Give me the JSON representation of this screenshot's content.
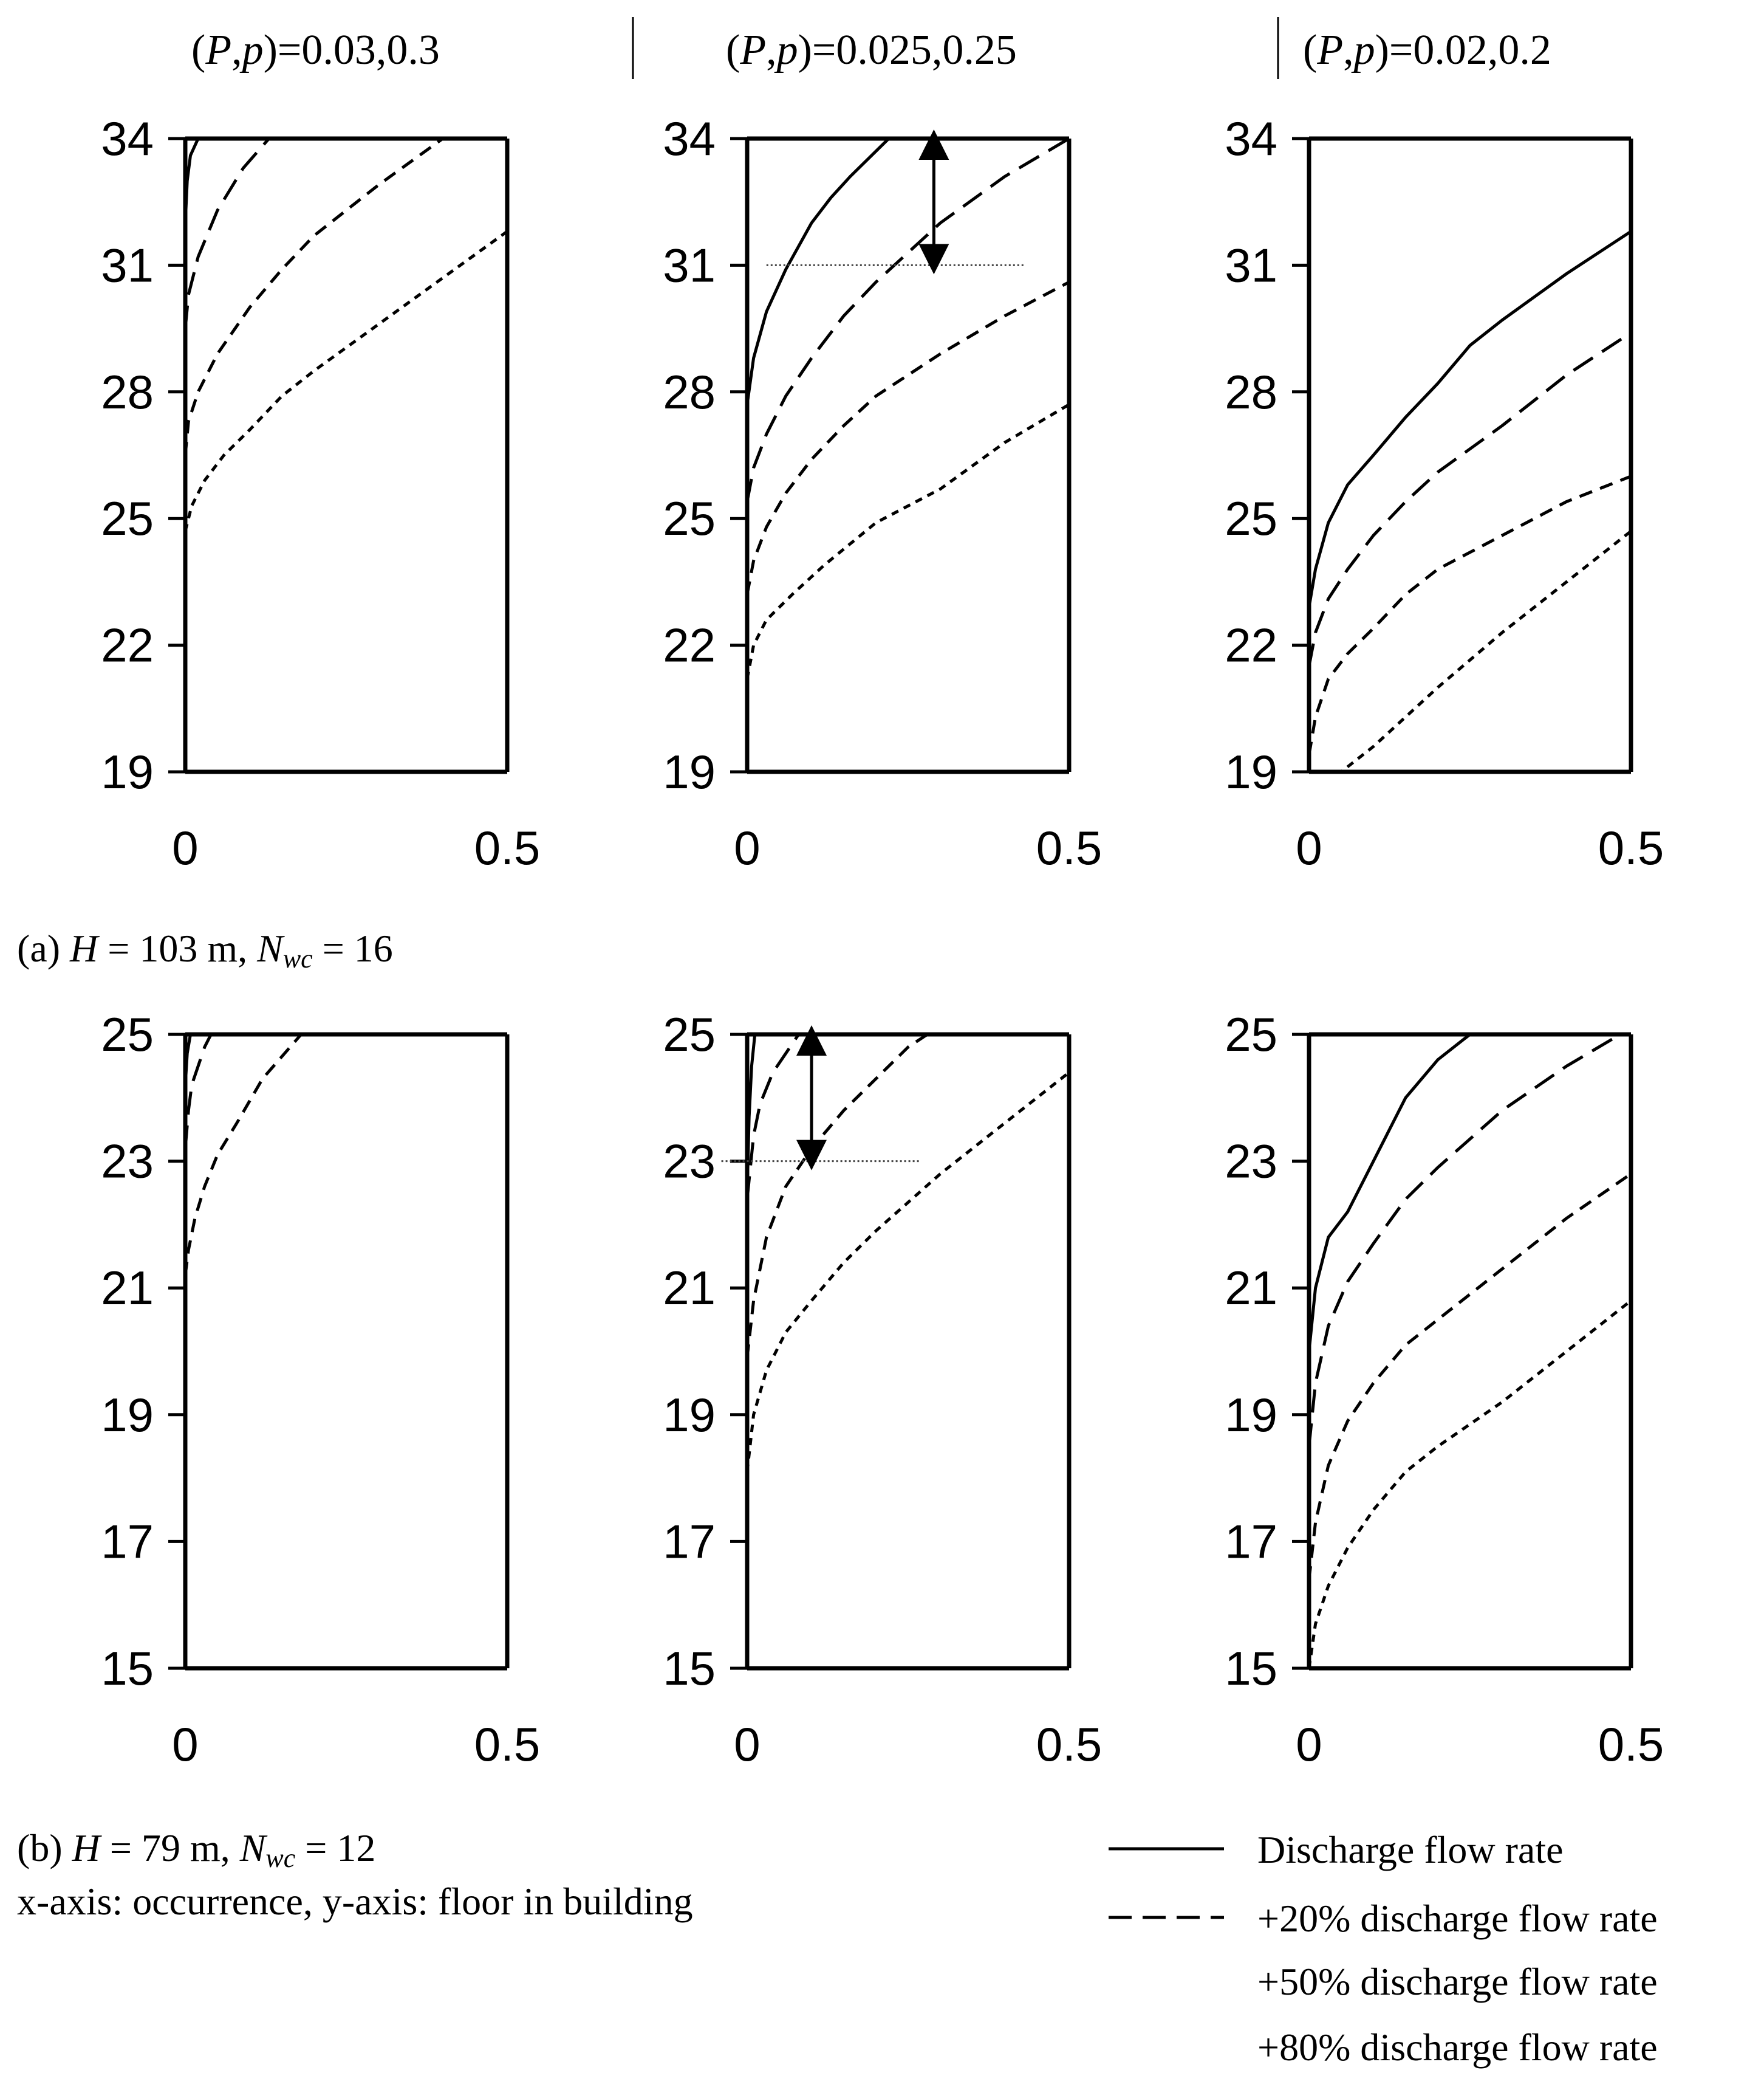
{
  "column_headers": [
    {
      "pre": "(",
      "P": "P",
      "comma": ",",
      "p": "p",
      "post": ")=0.03,0.3"
    },
    {
      "pre": "(",
      "P": "P",
      "comma": ",",
      "p": "p",
      "post": ")=0.025,0.25"
    },
    {
      "pre": "(",
      "P": "P",
      "comma": ",",
      "p": "p",
      "post": ")=0.02,0.2"
    }
  ],
  "captions": {
    "a": {
      "prefix": "(a) ",
      "H": "H",
      "h_value": " = 103 m, ",
      "N": "N",
      "sub": "wc",
      "n_value": " = 16"
    },
    "b": {
      "prefix": "(b) ",
      "H": "H",
      "h_value": " = 79 m, ",
      "N": "N",
      "sub": "wc",
      "n_value": " = 12"
    },
    "axes_note": "x-axis: occurrence, y-axis: floor in building"
  },
  "legend": [
    {
      "label": "Discharge flow rate",
      "style": "solid"
    },
    {
      "label": "+20% discharge flow rate",
      "style": "long-dash"
    },
    {
      "label": "+50% discharge flow rate",
      "style": "dash"
    },
    {
      "label": "+80% discharge flow rate",
      "style": "short-dash"
    }
  ],
  "styles": {
    "solid": "none",
    "long-dash": "38 18",
    "dash": "22 14",
    "short-dash": "12 10"
  },
  "chart_data": [
    {
      "type": "line",
      "row": "a",
      "col": 0,
      "xlim": [
        0,
        0.5
      ],
      "ylim": [
        19,
        34
      ],
      "xticks": [
        "0",
        "0.5"
      ],
      "yticks": [
        "19",
        "22",
        "25",
        "28",
        "31",
        "34"
      ],
      "series": [
        {
          "style": "solid",
          "x": [
            0,
            0.003,
            0.008,
            0.02
          ],
          "y": [
            32,
            33,
            33.6,
            34
          ]
        },
        {
          "style": "long-dash",
          "x": [
            0,
            0.005,
            0.02,
            0.05,
            0.09,
            0.13
          ],
          "y": [
            29.5,
            30.3,
            31.2,
            32.3,
            33.3,
            34
          ]
        },
        {
          "style": "dash",
          "x": [
            0,
            0.005,
            0.02,
            0.05,
            0.1,
            0.15,
            0.2,
            0.3,
            0.4
          ],
          "y": [
            26.5,
            27.3,
            28,
            28.9,
            30,
            30.9,
            31.7,
            32.9,
            34
          ]
        },
        {
          "style": "short-dash",
          "x": [
            0,
            0.01,
            0.03,
            0.06,
            0.1,
            0.15,
            0.2,
            0.3,
            0.4,
            0.5
          ],
          "y": [
            24.7,
            25.3,
            25.9,
            26.5,
            27.1,
            27.9,
            28.5,
            29.6,
            30.7,
            31.8
          ]
        }
      ]
    },
    {
      "type": "line",
      "row": "a",
      "col": 1,
      "xlim": [
        0,
        0.5
      ],
      "ylim": [
        19,
        34
      ],
      "xticks": [
        "0",
        "0.5"
      ],
      "yticks": [
        "19",
        "22",
        "25",
        "28",
        "31",
        "34"
      ],
      "series": [
        {
          "style": "solid",
          "x": [
            0,
            0.01,
            0.03,
            0.06,
            0.1,
            0.13,
            0.16,
            0.2,
            0.22
          ],
          "y": [
            27.7,
            28.8,
            29.9,
            30.9,
            32,
            32.6,
            33.1,
            33.7,
            34
          ]
        },
        {
          "style": "long-dash",
          "x": [
            0,
            0.01,
            0.03,
            0.06,
            0.1,
            0.15,
            0.2,
            0.3,
            0.4,
            0.5
          ],
          "y": [
            25.4,
            26.2,
            27,
            27.9,
            28.8,
            29.8,
            30.6,
            32,
            33.1,
            34
          ]
        },
        {
          "style": "dash",
          "x": [
            0,
            0.01,
            0.03,
            0.06,
            0.1,
            0.15,
            0.2,
            0.3,
            0.4,
            0.5
          ],
          "y": [
            23.2,
            24,
            24.8,
            25.6,
            26.4,
            27.2,
            27.9,
            28.9,
            29.8,
            30.6
          ]
        },
        {
          "style": "short-dash",
          "x": [
            0,
            0.01,
            0.03,
            0.07,
            0.12,
            0.2,
            0.3,
            0.4,
            0.5
          ],
          "y": [
            21.2,
            22,
            22.6,
            23.2,
            23.9,
            24.9,
            25.7,
            26.8,
            27.7
          ]
        }
      ],
      "annotation": {
        "arrow_x": 0.29,
        "arrow_y1": 34,
        "arrow_y2": 31,
        "ref_line_y": 31,
        "ref_line_x": [
          0.03,
          0.43
        ]
      }
    },
    {
      "type": "line",
      "row": "a",
      "col": 2,
      "xlim": [
        0,
        0.5
      ],
      "ylim": [
        19,
        34
      ],
      "xticks": [
        "0",
        "0.5"
      ],
      "yticks": [
        "19",
        "22",
        "25",
        "28",
        "31",
        "34"
      ],
      "series": [
        {
          "style": "solid",
          "x": [
            0,
            0.01,
            0.03,
            0.06,
            0.1,
            0.15,
            0.2,
            0.25,
            0.3,
            0.4,
            0.5
          ],
          "y": [
            22.9,
            23.8,
            24.9,
            25.8,
            26.5,
            27.4,
            28.2,
            29.1,
            29.7,
            30.8,
            31.8
          ]
        },
        {
          "style": "long-dash",
          "x": [
            0,
            0.01,
            0.03,
            0.06,
            0.1,
            0.15,
            0.2,
            0.3,
            0.4,
            0.5
          ],
          "y": [
            21.5,
            22.3,
            23.1,
            23.8,
            24.6,
            25.4,
            26.1,
            27.2,
            28.4,
            29.4
          ]
        },
        {
          "style": "dash",
          "x": [
            0,
            0.01,
            0.03,
            0.06,
            0.1,
            0.15,
            0.2,
            0.3,
            0.4,
            0.5
          ],
          "y": [
            19.4,
            20.3,
            21.2,
            21.8,
            22.4,
            23.2,
            23.8,
            24.6,
            25.4,
            26
          ]
        },
        {
          "style": "short-dash",
          "x": [
            0,
            0.05,
            0.1,
            0.2,
            0.3,
            0.4,
            0.5
          ],
          "y": [
            19,
            19,
            19.6,
            21,
            22.3,
            23.5,
            24.7
          ]
        }
      ]
    },
    {
      "type": "line",
      "row": "b",
      "col": 0,
      "xlim": [
        0,
        0.5
      ],
      "ylim": [
        15,
        25
      ],
      "xticks": [
        "0",
        "0.5"
      ],
      "yticks": [
        "15",
        "17",
        "19",
        "21",
        "23",
        "25"
      ],
      "series": [
        {
          "style": "solid",
          "x": [
            0,
            0.003,
            0.008
          ],
          "y": [
            24.2,
            24.7,
            25
          ]
        },
        {
          "style": "long-dash",
          "x": [
            0,
            0.005,
            0.01,
            0.02,
            0.03,
            0.04
          ],
          "y": [
            23.2,
            23.8,
            24.2,
            24.5,
            24.8,
            25
          ]
        },
        {
          "style": "dash",
          "x": [
            0,
            0.005,
            0.015,
            0.03,
            0.05,
            0.08,
            0.12,
            0.18
          ],
          "y": [
            21.2,
            21.6,
            22.1,
            22.6,
            23.1,
            23.6,
            24.3,
            25
          ]
        }
      ]
    },
    {
      "type": "line",
      "row": "b",
      "col": 1,
      "xlim": [
        0,
        0.5
      ],
      "ylim": [
        15,
        25
      ],
      "xticks": [
        "0",
        "0.5"
      ],
      "yticks": [
        "15",
        "17",
        "19",
        "21",
        "23",
        "25"
      ],
      "series": [
        {
          "style": "solid",
          "x": [
            0,
            0.003,
            0.007,
            0.012
          ],
          "y": [
            22.5,
            23.7,
            24.5,
            25
          ]
        },
        {
          "style": "long-dash",
          "x": [
            0,
            0.005,
            0.01,
            0.02,
            0.04,
            0.06,
            0.08
          ],
          "y": [
            22.4,
            22.9,
            23.4,
            23.9,
            24.4,
            24.7,
            25
          ]
        },
        {
          "style": "dash",
          "x": [
            0,
            0.01,
            0.03,
            0.06,
            0.1,
            0.15,
            0.2,
            0.25,
            0.28
          ],
          "y": [
            19.9,
            20.8,
            21.8,
            22.6,
            23.2,
            23.8,
            24.3,
            24.8,
            25
          ]
        },
        {
          "style": "short-dash",
          "x": [
            0,
            0.01,
            0.03,
            0.06,
            0.1,
            0.15,
            0.2,
            0.3,
            0.4,
            0.5
          ],
          "y": [
            18.1,
            19,
            19.7,
            20.3,
            20.8,
            21.4,
            21.9,
            22.8,
            23.6,
            24.4
          ]
        }
      ],
      "annotation": {
        "arrow_x": 0.1,
        "arrow_y1": 25,
        "arrow_y2": 23,
        "ref_line_y": 23,
        "ref_line_x": [
          -0.04,
          0.27
        ]
      }
    },
    {
      "type": "line",
      "row": "b",
      "col": 2,
      "xlim": [
        0,
        0.5
      ],
      "ylim": [
        15,
        25
      ],
      "xticks": [
        "0",
        "0.5"
      ],
      "yticks": [
        "15",
        "17",
        "19",
        "21",
        "23",
        "25"
      ],
      "series": [
        {
          "style": "solid",
          "x": [
            0,
            0.01,
            0.03,
            0.06,
            0.1,
            0.15,
            0.2,
            0.25
          ],
          "y": [
            20,
            21,
            21.8,
            22.2,
            23,
            24,
            24.6,
            25
          ]
        },
        {
          "style": "long-dash",
          "x": [
            0,
            0.01,
            0.03,
            0.06,
            0.1,
            0.15,
            0.2,
            0.3,
            0.4,
            0.5
          ],
          "y": [
            18.5,
            19.5,
            20.4,
            21.1,
            21.7,
            22.4,
            22.9,
            23.8,
            24.5,
            25.1
          ]
        },
        {
          "style": "dash",
          "x": [
            0,
            0.01,
            0.03,
            0.06,
            0.1,
            0.15,
            0.2,
            0.3,
            0.4,
            0.5
          ],
          "y": [
            16.4,
            17.3,
            18.2,
            18.9,
            19.5,
            20.1,
            20.5,
            21.3,
            22.1,
            22.8
          ]
        },
        {
          "style": "short-dash",
          "x": [
            0,
            0.01,
            0.03,
            0.06,
            0.1,
            0.15,
            0.2,
            0.3,
            0.4,
            0.5
          ],
          "y": [
            15,
            15.7,
            16.3,
            16.9,
            17.5,
            18.1,
            18.5,
            19.2,
            20,
            20.8
          ]
        }
      ]
    }
  ]
}
